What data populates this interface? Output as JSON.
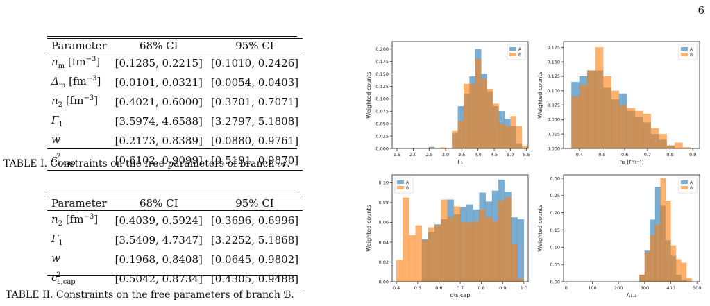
{
  "page_number": "6",
  "table1": {
    "header": [
      "Parameter",
      "68% CI",
      "95% CI"
    ],
    "rows": [
      {
        "p_base": "n",
        "p_sub": "m",
        "p_unit": " [fm",
        "p_exp": "−3",
        "p_close": "]",
        "ci68": "[0.1285, 0.2215]",
        "ci95": "[0.1010, 0.2426]"
      },
      {
        "p_base": "Δ",
        "p_sub": "m",
        "p_unit": " [fm",
        "p_exp": "−3",
        "p_close": "]",
        "ci68": "[0.0101, 0.0321]",
        "ci95": "[0.0054, 0.0403]"
      },
      {
        "p_base": "n",
        "p_sub": "2",
        "p_unit": " [fm",
        "p_exp": "−3",
        "p_close": "]",
        "ci68": "[0.4021, 0.6000]",
        "ci95": "[0.3701, 0.7071]"
      },
      {
        "p_base": "Γ",
        "p_sub": "1",
        "p_unit": "",
        "p_exp": "",
        "p_close": "",
        "ci68": "[3.5974, 4.6588]",
        "ci95": "[3.2797, 5.1808]"
      },
      {
        "p_base": "w",
        "p_sub": "",
        "p_unit": "",
        "p_exp": "",
        "p_close": "",
        "ci68": "[0.2173, 0.8389]",
        "ci95": "[0.0880, 0.9761]"
      },
      {
        "p_base": "c",
        "p_sub": "s,cap",
        "p_unit": "",
        "p_exp": "2",
        "p_close": "",
        "ci68": "[0.6102, 0.9099]",
        "ci95": "[0.5191, 0.9870]"
      }
    ],
    "caption": "TABLE I. Constraints on the free parameters of branch 𝒜."
  },
  "table2": {
    "header": [
      "Parameter",
      "68% CI",
      "95% CI"
    ],
    "rows": [
      {
        "p_base": "n",
        "p_sub": "2",
        "p_unit": " [fm",
        "p_exp": "−3",
        "p_close": "]",
        "ci68": "[0.4039, 0.5924]",
        "ci95": "[0.3696, 0.6996]"
      },
      {
        "p_base": "Γ",
        "p_sub": "1",
        "p_unit": "",
        "p_exp": "",
        "p_close": "",
        "ci68": "[3.5409, 4.7347]",
        "ci95": "[3.2252, 5.1868]"
      },
      {
        "p_base": "w",
        "p_sub": "",
        "p_unit": "",
        "p_exp": "",
        "p_close": "",
        "ci68": "[0.1968, 0.8408]",
        "ci95": "[0.0645, 0.9802]"
      },
      {
        "p_base": "c",
        "p_sub": "s,cap",
        "p_unit": "",
        "p_exp": "2",
        "p_close": "",
        "ci68": "[0.5042, 0.8734]",
        "ci95": "[0.4305, 0.9488]"
      }
    ],
    "caption": "TABLE II. Constraints on the free parameters of branch ℬ."
  },
  "colors": {
    "A": "#1f77b4",
    "B": "#ff7f0e"
  },
  "chart_data": [
    {
      "type": "bar",
      "xlabel": "Γ₁",
      "ylabel": "Weighted counts",
      "xlim": [
        1.35,
        5.55
      ],
      "ylim": [
        0,
        0.215
      ],
      "bin_width": 0.18,
      "x_ticks": [
        1.5,
        2.0,
        2.5,
        3.0,
        3.5,
        4.0,
        4.5,
        5.0,
        5.5
      ],
      "x_tick_labels": [
        "1.5",
        "2.0",
        "2.5",
        "3.0",
        "3.5",
        "4.0",
        "4.5",
        "5.0",
        "5.5"
      ],
      "y_ticks": [
        0,
        0.025,
        0.05,
        0.075,
        0.1,
        0.125,
        0.15,
        0.175,
        0.2
      ],
      "y_tick_labels": [
        "0.000",
        "0.025",
        "0.050",
        "0.075",
        "0.100",
        "0.125",
        "0.150",
        "0.175",
        "0.200"
      ],
      "legend": [
        "A",
        "B"
      ],
      "legend_position": "top-right",
      "series": [
        {
          "name": "A",
          "bin_starts": [
            2.48,
            3.2,
            3.38,
            3.56,
            3.74,
            3.92,
            4.1,
            4.28,
            4.46,
            4.64,
            4.82,
            5.0,
            5.18
          ],
          "values": [
            0.003,
            0.03,
            0.085,
            0.11,
            0.145,
            0.2,
            0.15,
            0.115,
            0.085,
            0.075,
            0.06,
            0.045,
            0.01
          ]
        },
        {
          "name": "B",
          "bin_starts": [
            2.48,
            2.84,
            3.2,
            3.38,
            3.56,
            3.74,
            3.92,
            4.1,
            4.28,
            4.46,
            4.64,
            4.82,
            5.0,
            5.18,
            5.36
          ],
          "values": [
            0.001,
            0.002,
            0.035,
            0.055,
            0.13,
            0.13,
            0.18,
            0.14,
            0.12,
            0.09,
            0.05,
            0.045,
            0.065,
            0.045,
            0.005
          ]
        }
      ]
    },
    {
      "type": "bar",
      "xlabel": "n₂ [fm⁻³]",
      "ylabel": "Weighted counts",
      "xlim": [
        0.33,
        0.93
      ],
      "ylim": [
        0,
        0.185
      ],
      "bin_width": 0.035,
      "x_ticks": [
        0.4,
        0.5,
        0.6,
        0.7,
        0.8,
        0.9
      ],
      "x_tick_labels": [
        "0.4",
        "0.5",
        "0.6",
        "0.7",
        "0.8",
        "0.9"
      ],
      "y_ticks": [
        0,
        0.025,
        0.05,
        0.075,
        0.1,
        0.125,
        0.15,
        0.175
      ],
      "y_tick_labels": [
        "0.000",
        "0.025",
        "0.050",
        "0.075",
        "0.100",
        "0.125",
        "0.150",
        "0.175"
      ],
      "legend": [
        "A",
        "B"
      ],
      "legend_position": "top-right",
      "series": [
        {
          "name": "A",
          "bin_starts": [
            0.365,
            0.4,
            0.435,
            0.47,
            0.505,
            0.54,
            0.575,
            0.61,
            0.645,
            0.68,
            0.715,
            0.75,
            0.785
          ],
          "values": [
            0.115,
            0.125,
            0.135,
            0.135,
            0.105,
            0.085,
            0.095,
            0.065,
            0.055,
            0.045,
            0.025,
            0.015,
            0.005
          ]
        },
        {
          "name": "B",
          "bin_starts": [
            0.365,
            0.4,
            0.435,
            0.47,
            0.505,
            0.54,
            0.575,
            0.61,
            0.645,
            0.68,
            0.715,
            0.75,
            0.785,
            0.82,
            0.855
          ],
          "values": [
            0.09,
            0.11,
            0.135,
            0.175,
            0.125,
            0.1,
            0.075,
            0.07,
            0.065,
            0.06,
            0.035,
            0.025,
            0.005,
            0.01,
            0.002
          ]
        }
      ]
    },
    {
      "type": "bar",
      "xlabel": "c²s,cap",
      "ylabel": "Weighted counts",
      "xlim": [
        0.38,
        1.02
      ],
      "ylim": [
        0,
        0.108
      ],
      "bin_width": 0.03,
      "x_ticks": [
        0.4,
        0.5,
        0.6,
        0.7,
        0.8,
        0.9,
        1.0
      ],
      "x_tick_labels": [
        "0.4",
        "0.5",
        "0.6",
        "0.7",
        "0.8",
        "0.9",
        "1.0"
      ],
      "y_ticks": [
        0,
        0.02,
        0.04,
        0.06,
        0.08,
        0.1
      ],
      "y_tick_labels": [
        "0.00",
        "0.02",
        "0.04",
        "0.06",
        "0.08",
        "0.10"
      ],
      "legend": [
        "A",
        "B"
      ],
      "legend_position": "top-left",
      "series": [
        {
          "name": "A",
          "bin_starts": [
            0.52,
            0.55,
            0.58,
            0.61,
            0.64,
            0.67,
            0.7,
            0.73,
            0.76,
            0.79,
            0.82,
            0.85,
            0.88,
            0.91,
            0.94,
            0.97
          ],
          "values": [
            0.043,
            0.05,
            0.058,
            0.063,
            0.083,
            0.068,
            0.075,
            0.078,
            0.073,
            0.09,
            0.081,
            0.092,
            0.103,
            0.091,
            0.065,
            0.063
          ]
        },
        {
          "name": "B",
          "bin_starts": [
            0.4,
            0.43,
            0.46,
            0.49,
            0.52,
            0.55,
            0.58,
            0.61,
            0.64,
            0.67,
            0.7,
            0.73,
            0.76,
            0.79,
            0.82,
            0.85,
            0.88,
            0.91,
            0.94,
            0.97
          ],
          "values": [
            0.022,
            0.085,
            0.047,
            0.057,
            0.042,
            0.055,
            0.057,
            0.083,
            0.065,
            0.076,
            0.06,
            0.06,
            0.061,
            0.073,
            0.065,
            0.061,
            0.082,
            0.085,
            0.038,
            0.003
          ]
        }
      ]
    },
    {
      "type": "bar",
      "xlabel": "Λ₁.₄",
      "ylabel": "Weighted counts",
      "xlim": [
        -10,
        510
      ],
      "ylim": [
        0,
        0.31
      ],
      "bin_width": 20,
      "x_ticks": [
        0,
        100,
        200,
        300,
        400,
        500
      ],
      "x_tick_labels": [
        "0",
        "100",
        "200",
        "300",
        "400",
        "500"
      ],
      "y_ticks": [
        0,
        0.05,
        0.1,
        0.15,
        0.2,
        0.25,
        0.3
      ],
      "y_tick_labels": [
        "0.00",
        "0.05",
        "0.10",
        "0.15",
        "0.20",
        "0.25",
        "0.30"
      ],
      "legend": [
        "A",
        "B"
      ],
      "legend_position": "top-right",
      "series": [
        {
          "name": "A",
          "bin_starts": [
            280,
            300,
            320,
            340,
            360,
            380,
            400,
            420,
            440
          ],
          "values": [
            0.02,
            0.09,
            0.18,
            0.275,
            0.22,
            0.12,
            0.075,
            0.02,
            0.005
          ]
        },
        {
          "name": "B",
          "bin_starts": [
            280,
            300,
            320,
            340,
            360,
            380,
            400,
            420,
            440,
            460
          ],
          "values": [
            0.02,
            0.085,
            0.135,
            0.165,
            0.3,
            0.235,
            0.105,
            0.065,
            0.055,
            0.01
          ]
        }
      ]
    }
  ]
}
